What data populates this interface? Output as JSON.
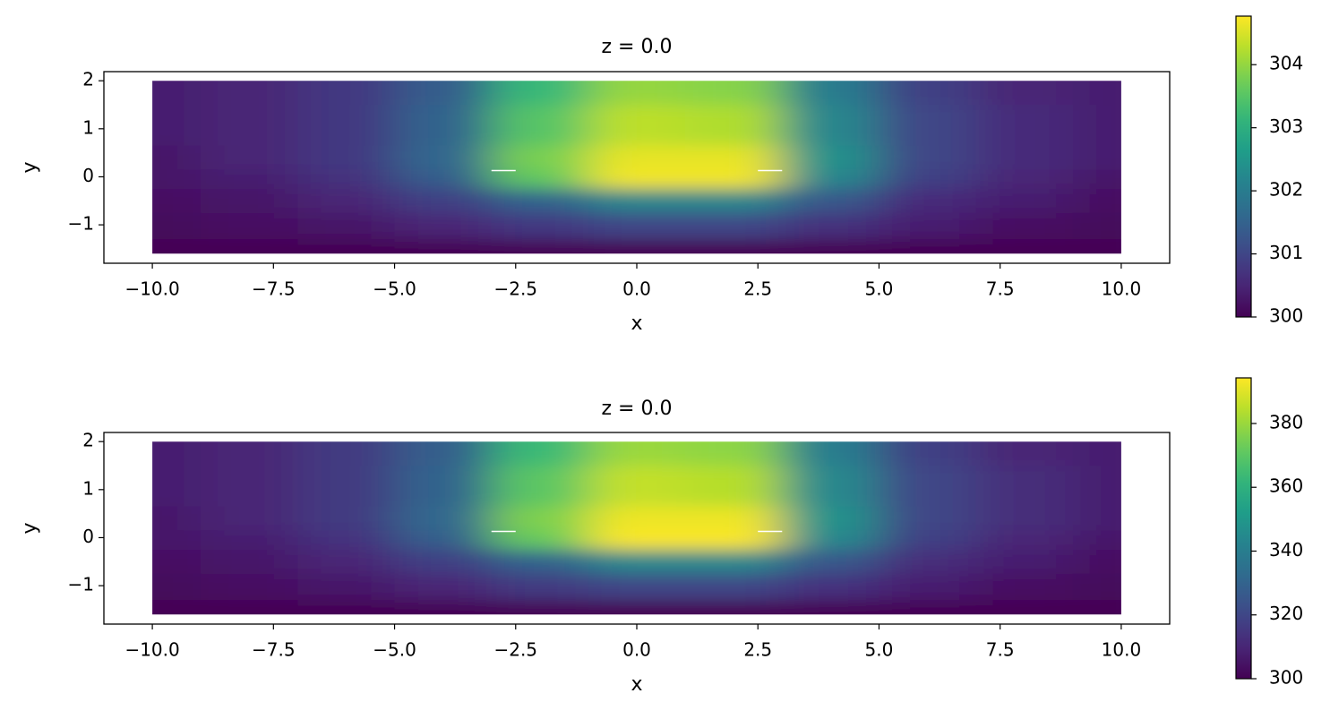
{
  "chart_data": [
    {
      "type": "heatmap",
      "title": "z = 0.0",
      "xlabel": "x",
      "ylabel": "y",
      "colormap": "viridis",
      "x": [
        -10,
        -8,
        -6,
        -4,
        -2,
        0,
        2,
        4,
        6,
        8,
        10
      ],
      "y": [
        2,
        1,
        0.3,
        0,
        -0.5,
        -1,
        -1.6
      ],
      "z": [
        [
          300.4,
          300.5,
          300.8,
          301.4,
          303.2,
          304.0,
          303.9,
          302.0,
          300.9,
          300.5,
          300.4
        ],
        [
          300.4,
          300.5,
          300.8,
          301.5,
          303.5,
          304.3,
          304.2,
          302.2,
          301.0,
          300.6,
          300.4
        ],
        [
          300.3,
          300.5,
          300.8,
          301.6,
          303.8,
          304.6,
          304.6,
          302.4,
          301.0,
          300.6,
          300.4
        ],
        [
          300.3,
          300.4,
          300.7,
          301.4,
          303.6,
          304.7,
          304.7,
          302.2,
          300.9,
          300.5,
          300.3
        ],
        [
          300.2,
          300.3,
          300.5,
          300.9,
          301.5,
          302.2,
          302.2,
          301.3,
          300.6,
          300.4,
          300.2
        ],
        [
          300.1,
          300.2,
          300.3,
          300.5,
          300.8,
          301.0,
          301.0,
          300.7,
          300.4,
          300.2,
          300.1
        ],
        [
          300,
          300,
          300,
          300,
          300,
          300,
          300,
          300,
          300,
          300,
          300
        ]
      ],
      "xlim": [
        -11,
        11
      ],
      "ylim": [
        -1.8,
        2.19
      ],
      "xticks": [
        {
          "value": -10,
          "label": "−10.0"
        },
        {
          "value": -7.5,
          "label": "−7.5"
        },
        {
          "value": -5,
          "label": "−5.0"
        },
        {
          "value": -2.5,
          "label": "−2.5"
        },
        {
          "value": 0,
          "label": "0.0"
        },
        2.5,
        {
          "value": 5,
          "label": "5.0"
        },
        7.5,
        {
          "value": 10,
          "label": "10.0"
        }
      ],
      "yticks": [
        {
          "value": -1,
          "label": "−1"
        },
        0,
        1,
        2
      ],
      "clim": [
        300,
        304.77
      ],
      "cticks": [
        300,
        301,
        302,
        303,
        304
      ]
    },
    {
      "type": "heatmap",
      "title": "z = 0.0",
      "xlabel": "x",
      "ylabel": "y",
      "colormap": "viridis",
      "x": [
        -10,
        -8,
        -6,
        -4,
        -2,
        0,
        2,
        4,
        6,
        8,
        10
      ],
      "y": [
        2,
        1,
        0.3,
        0,
        -0.5,
        -1,
        -1.6
      ],
      "z": [
        [
          308,
          310,
          316,
          328,
          364,
          380,
          378,
          340,
          318,
          310,
          308
        ],
        [
          308,
          310,
          316,
          330,
          370,
          386,
          384,
          344,
          320,
          312,
          308
        ],
        [
          306,
          310,
          316,
          332,
          376,
          392,
          392,
          348,
          320,
          312,
          308
        ],
        [
          306,
          308,
          314,
          328,
          372,
          394,
          394,
          344,
          318,
          310,
          306
        ],
        [
          304,
          306,
          310,
          318,
          330,
          344,
          344,
          326,
          312,
          308,
          304
        ],
        [
          302,
          304,
          306,
          310,
          316,
          320,
          320,
          314,
          308,
          304,
          302
        ],
        [
          300,
          300,
          300,
          300,
          300,
          300,
          300,
          300,
          300,
          300,
          300
        ]
      ],
      "xlim": [
        -11,
        11
      ],
      "ylim": [
        -1.8,
        2.19
      ],
      "xticks": [
        {
          "value": -10,
          "label": "−10.0"
        },
        {
          "value": -7.5,
          "label": "−7.5"
        },
        {
          "value": -5,
          "label": "−5.0"
        },
        {
          "value": -2.5,
          "label": "−2.5"
        },
        {
          "value": 0,
          "label": "0.0"
        },
        2.5,
        {
          "value": 5,
          "label": "5.0"
        },
        7.5,
        {
          "value": 10,
          "label": "10.0"
        }
      ],
      "yticks": [
        {
          "value": -1,
          "label": "−1"
        },
        0,
        1,
        2
      ],
      "clim": [
        300,
        394.3
      ],
      "cticks": [
        300,
        320,
        340,
        360,
        380
      ]
    }
  ]
}
